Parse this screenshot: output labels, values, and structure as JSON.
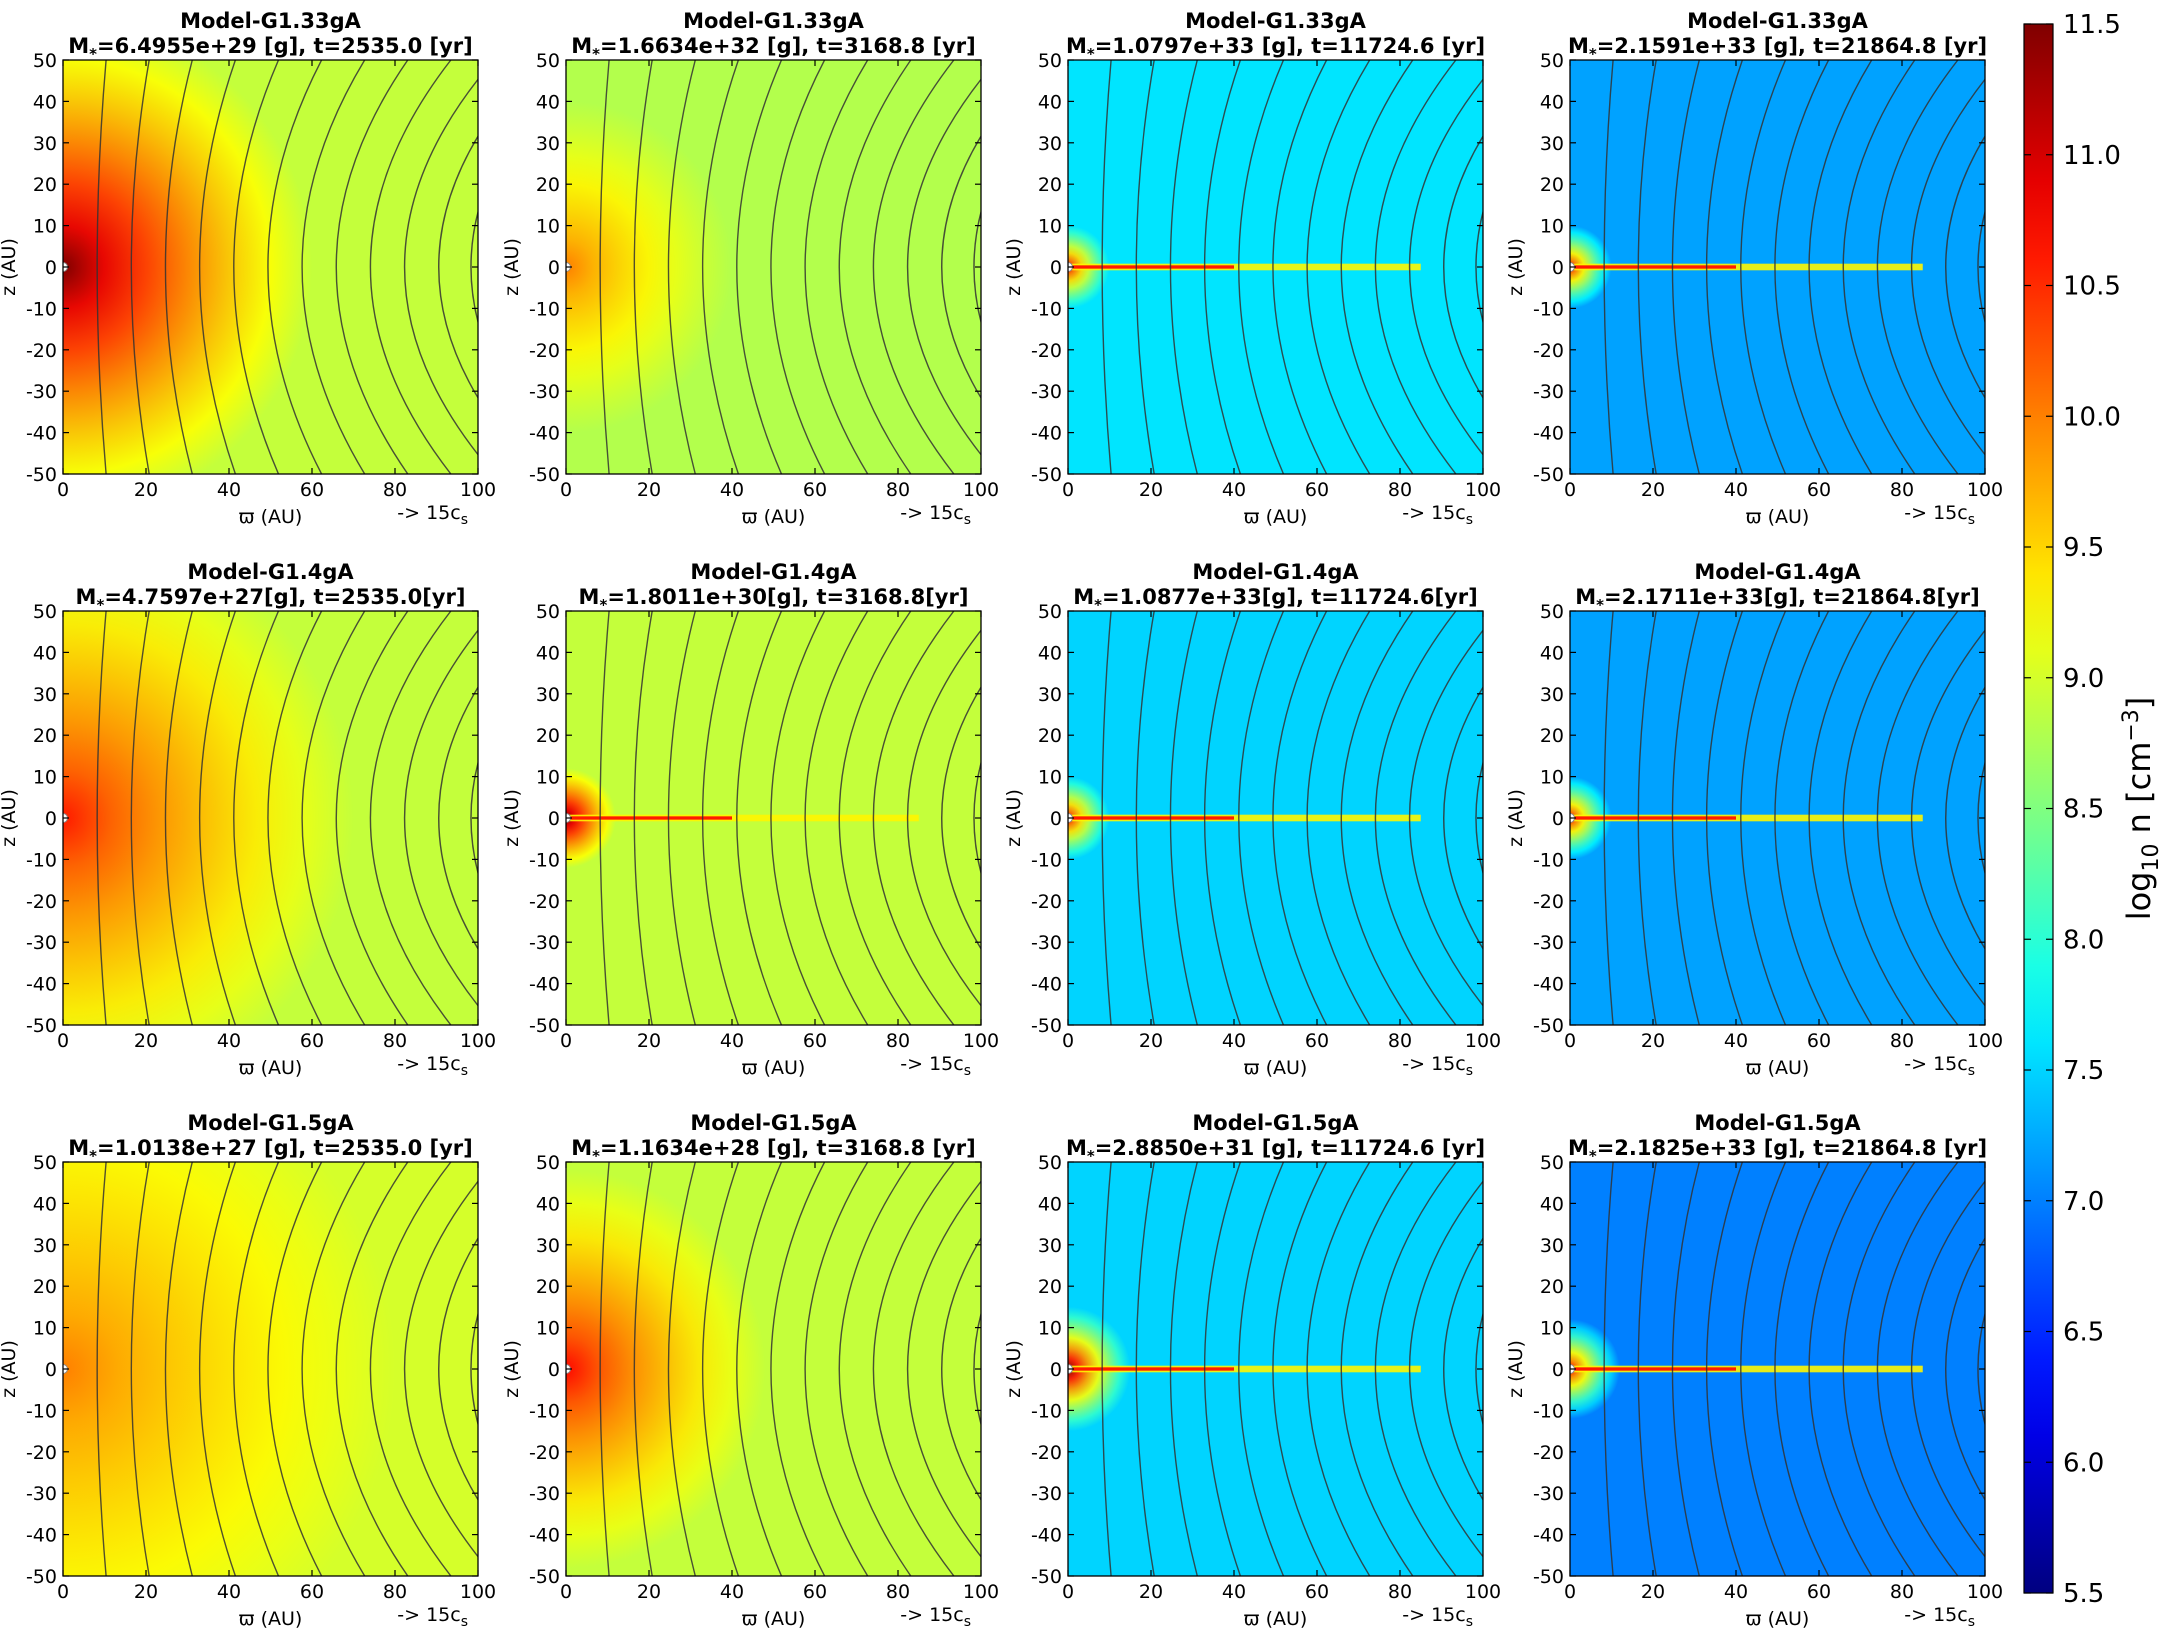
{
  "figure": {
    "xlabel": "ϖ (AU)",
    "ylabel": "z (AU)",
    "vector_key": "-> 15c",
    "vector_key_sub": "s"
  },
  "colorbar": {
    "label": "log10 n [cm^-3]",
    "label_main": "log",
    "label_sub": "10",
    "label_rest": " n [cm",
    "label_sup": "−3",
    "label_end": "]",
    "range": [
      5.5,
      11.5
    ],
    "ticks": [
      "11.5",
      "11.0",
      "10.5",
      "10.0",
      "9.5",
      "9.0",
      "8.5",
      "8.0",
      "7.5",
      "7.0",
      "6.5",
      "6.0",
      "5.5"
    ],
    "colormap": "jet"
  },
  "chart_data": [
    {
      "type": "heatmap",
      "row": 1,
      "col": 1,
      "title": "Model-G1.33gA",
      "mass": "6.4955e+29 [g]",
      "time": "t=2535.0 [yr]",
      "xlim": [
        0,
        100
      ],
      "ylim": [
        -50,
        50
      ],
      "xticks": [
        0,
        20,
        40,
        60,
        80,
        100
      ],
      "yticks": [
        50,
        40,
        30,
        20,
        10,
        0,
        -10,
        -20,
        -30,
        -40,
        -50
      ],
      "xlabel": "ϖ (AU)",
      "ylabel": "z (AU)",
      "background_log_n": 8.9,
      "core_log_n": 11.5,
      "core_extent_au": 60
    },
    {
      "type": "heatmap",
      "row": 1,
      "col": 2,
      "title": "Model-G1.33gA",
      "mass": "1.6634e+32 [g]",
      "time": "t=3168.8 [yr]",
      "xlim": [
        0,
        100
      ],
      "ylim": [
        -50,
        50
      ],
      "xticks": [
        0,
        20,
        40,
        60,
        80,
        100
      ],
      "yticks": [
        50,
        40,
        30,
        20,
        10,
        0,
        -10,
        -20,
        -30,
        -40,
        -50
      ],
      "xlabel": "ϖ (AU)",
      "ylabel": "z (AU)",
      "background_log_n": 8.8,
      "core_log_n": 10.0,
      "core_extent_au": 40
    },
    {
      "type": "heatmap",
      "row": 1,
      "col": 3,
      "title": "Model-G1.33gA",
      "mass": "1.0797e+33 [g]",
      "time": "t=11724.6 [yr]",
      "xlim": [
        0,
        100
      ],
      "ylim": [
        -50,
        50
      ],
      "xticks": [
        0,
        20,
        40,
        60,
        80,
        100
      ],
      "yticks": [
        50,
        40,
        30,
        20,
        10,
        0,
        -10,
        -20,
        -30,
        -40,
        -50
      ],
      "xlabel": "ϖ (AU)",
      "ylabel": "z (AU)",
      "background_log_n": 7.6,
      "core_log_n": 10.8,
      "core_extent_au": 10
    },
    {
      "type": "heatmap",
      "row": 1,
      "col": 4,
      "title": "Model-G1.33gA",
      "mass": "2.1591e+33 [g]",
      "time": "t=21864.8 [yr]",
      "xlim": [
        0,
        100
      ],
      "ylim": [
        -50,
        50
      ],
      "xticks": [
        0,
        20,
        40,
        60,
        80,
        100
      ],
      "yticks": [
        50,
        40,
        30,
        20,
        10,
        0,
        -10,
        -20,
        -30,
        -40,
        -50
      ],
      "xlabel": "ϖ (AU)",
      "ylabel": "z (AU)",
      "background_log_n": 7.2,
      "core_log_n": 10.8,
      "core_extent_au": 10
    },
    {
      "type": "heatmap",
      "row": 2,
      "col": 1,
      "title": "Model-G1.4gA",
      "mass": "4.7597e+27[g]",
      "time": "t=2535.0[yr]",
      "xlim": [
        0,
        100
      ],
      "ylim": [
        -50,
        50
      ],
      "xticks": [
        0,
        20,
        40,
        60,
        80,
        100
      ],
      "yticks": [
        50,
        40,
        30,
        20,
        10,
        0,
        -10,
        -20,
        -30,
        -40,
        -50
      ],
      "xlabel": "ϖ (AU)",
      "ylabel": "z (AU)",
      "background_log_n": 8.9,
      "core_log_n": 10.6,
      "core_extent_au": 70
    },
    {
      "type": "heatmap",
      "row": 2,
      "col": 2,
      "title": "Model-G1.4gA",
      "mass": "1.8011e+30[g]",
      "time": "t=3168.8[yr]",
      "xlim": [
        0,
        100
      ],
      "ylim": [
        -50,
        50
      ],
      "xticks": [
        0,
        20,
        40,
        60,
        80,
        100
      ],
      "yticks": [
        50,
        40,
        30,
        20,
        10,
        0,
        -10,
        -20,
        -30,
        -40,
        -50
      ],
      "xlabel": "ϖ (AU)",
      "ylabel": "z (AU)",
      "background_log_n": 8.9,
      "core_log_n": 11.5,
      "core_extent_au": 12
    },
    {
      "type": "heatmap",
      "row": 2,
      "col": 3,
      "title": "Model-G1.4gA",
      "mass": "1.0877e+33[g]",
      "time": "t=11724.6[yr]",
      "xlim": [
        0,
        100
      ],
      "ylim": [
        -50,
        50
      ],
      "xticks": [
        0,
        20,
        40,
        60,
        80,
        100
      ],
      "yticks": [
        50,
        40,
        30,
        20,
        10,
        0,
        -10,
        -20,
        -30,
        -40,
        -50
      ],
      "xlabel": "ϖ (AU)",
      "ylabel": "z (AU)",
      "background_log_n": 7.5,
      "core_log_n": 10.8,
      "core_extent_au": 10
    },
    {
      "type": "heatmap",
      "row": 2,
      "col": 4,
      "title": "Model-G1.4gA",
      "mass": "2.1711e+33[g]",
      "time": "t=21864.8[yr]",
      "xlim": [
        0,
        100
      ],
      "ylim": [
        -50,
        50
      ],
      "xticks": [
        0,
        20,
        40,
        60,
        80,
        100
      ],
      "yticks": [
        50,
        40,
        30,
        20,
        10,
        0,
        -10,
        -20,
        -30,
        -40,
        -50
      ],
      "xlabel": "ϖ (AU)",
      "ylabel": "z (AU)",
      "background_log_n": 7.2,
      "core_log_n": 10.8,
      "core_extent_au": 10
    },
    {
      "type": "heatmap",
      "row": 3,
      "col": 1,
      "title": "Model-G1.5gA",
      "mass": "1.0138e+27 [g]",
      "time": "t=2535.0 [yr]",
      "xlim": [
        0,
        100
      ],
      "ylim": [
        -50,
        50
      ],
      "xticks": [
        0,
        20,
        40,
        60,
        80,
        100
      ],
      "yticks": [
        50,
        40,
        30,
        20,
        10,
        0,
        -10,
        -20,
        -30,
        -40,
        -50
      ],
      "xlabel": "ϖ (AU)",
      "ylabel": "z (AU)",
      "background_log_n": 9.0,
      "core_log_n": 10.0,
      "core_extent_au": 80
    },
    {
      "type": "heatmap",
      "row": 3,
      "col": 2,
      "title": "Model-G1.5gA",
      "mass": "1.1634e+28 [g]",
      "time": "t=3168.8 [yr]",
      "xlim": [
        0,
        100
      ],
      "ylim": [
        -50,
        50
      ],
      "xticks": [
        0,
        20,
        40,
        60,
        80,
        100
      ],
      "yticks": [
        50,
        40,
        30,
        20,
        10,
        0,
        -10,
        -20,
        -30,
        -40,
        -50
      ],
      "xlabel": "ϖ (AU)",
      "ylabel": "z (AU)",
      "background_log_n": 8.9,
      "core_log_n": 10.7,
      "core_extent_au": 48
    },
    {
      "type": "heatmap",
      "row": 3,
      "col": 3,
      "title": "Model-G1.5gA",
      "mass": "2.8850e+31 [g]",
      "time": "t=11724.6 [yr]",
      "xlim": [
        0,
        100
      ],
      "ylim": [
        -50,
        50
      ],
      "xticks": [
        0,
        20,
        40,
        60,
        80,
        100
      ],
      "yticks": [
        50,
        40,
        30,
        20,
        10,
        0,
        -10,
        -20,
        -30,
        -40,
        -50
      ],
      "xlabel": "ϖ (AU)",
      "ylabel": "z (AU)",
      "background_log_n": 7.5,
      "core_log_n": 11.5,
      "core_extent_au": 15
    },
    {
      "type": "heatmap",
      "row": 3,
      "col": 4,
      "title": "Model-G1.5gA",
      "mass": "2.1825e+33 [g]",
      "time": "t=21864.8 [yr]",
      "xlim": [
        0,
        100
      ],
      "ylim": [
        -50,
        50
      ],
      "xticks": [
        0,
        20,
        40,
        60,
        80,
        100
      ],
      "yticks": [
        50,
        40,
        30,
        20,
        10,
        0,
        -10,
        -20,
        -30,
        -40,
        -50
      ],
      "xlabel": "ϖ (AU)",
      "ylabel": "z (AU)",
      "background_log_n": 7.0,
      "core_log_n": 10.8,
      "core_extent_au": 12
    }
  ]
}
